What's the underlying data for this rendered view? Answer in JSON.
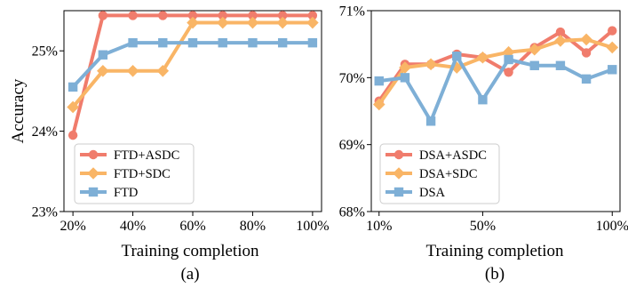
{
  "chart_data": [
    {
      "type": "line",
      "caption": "(a)",
      "xlabel": "Training completion",
      "ylabel": "Accuracy",
      "x": [
        20,
        30,
        40,
        50,
        60,
        70,
        80,
        90,
        100
      ],
      "xticks": [
        20,
        40,
        60,
        80,
        100
      ],
      "xtick_labels": [
        "20%",
        "40%",
        "60%",
        "80%",
        "100%"
      ],
      "xlim": [
        17,
        103
      ],
      "ylim": [
        23,
        25.5
      ],
      "yticks": [
        23,
        24,
        25
      ],
      "ytick_labels": [
        "23%",
        "24%",
        "25%"
      ],
      "grid": false,
      "legend_position": "lower-left",
      "series": [
        {
          "name": "FTD+ASDC",
          "color": "#F07C6C",
          "marker": "circle",
          "values": [
            23.95,
            25.44,
            25.44,
            25.44,
            25.44,
            25.44,
            25.44,
            25.44,
            25.44
          ]
        },
        {
          "name": "FTD+SDC",
          "color": "#F9B566",
          "marker": "diamond",
          "values": [
            24.3,
            24.75,
            24.75,
            24.75,
            25.35,
            25.35,
            25.35,
            25.35,
            25.35
          ]
        },
        {
          "name": "FTD",
          "color": "#7EAFD6",
          "marker": "square",
          "values": [
            24.55,
            24.95,
            25.1,
            25.1,
            25.1,
            25.1,
            25.1,
            25.1,
            25.1
          ]
        }
      ]
    },
    {
      "type": "line",
      "caption": "(b)",
      "xlabel": "Training completion",
      "ylabel": "",
      "x": [
        10,
        20,
        30,
        40,
        50,
        60,
        70,
        80,
        90,
        100
      ],
      "xticks": [
        10,
        50,
        100
      ],
      "xtick_labels": [
        "10%",
        "50%",
        "100%"
      ],
      "xlim": [
        7,
        103
      ],
      "ylim": [
        68,
        71
      ],
      "yticks": [
        68,
        69,
        70,
        71
      ],
      "ytick_labels": [
        "68%",
        "69%",
        "70%",
        "71%"
      ],
      "grid": false,
      "legend_position": "lower-left",
      "series": [
        {
          "name": "DSA+ASDC",
          "color": "#F07C6C",
          "marker": "circle",
          "values": [
            69.65,
            70.2,
            70.2,
            70.35,
            70.3,
            70.08,
            70.45,
            70.68,
            70.37,
            70.7
          ]
        },
        {
          "name": "DSA+SDC",
          "color": "#F9B566",
          "marker": "diamond",
          "values": [
            69.6,
            70.15,
            70.2,
            70.15,
            70.3,
            70.38,
            70.42,
            70.55,
            70.57,
            70.45
          ]
        },
        {
          "name": "DSA",
          "color": "#7EAFD6",
          "marker": "square",
          "values": [
            69.95,
            70.0,
            69.35,
            70.32,
            69.67,
            70.27,
            70.18,
            70.18,
            69.98,
            70.12
          ]
        }
      ]
    }
  ]
}
